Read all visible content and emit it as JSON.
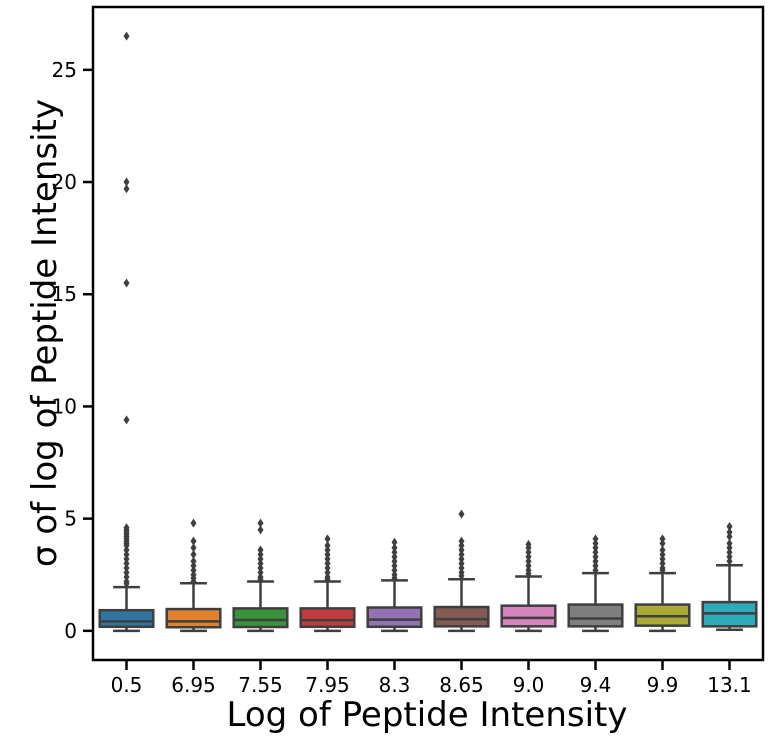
{
  "chart_data": {
    "type": "box",
    "title": "",
    "xlabel": "Log of Peptide Intensity",
    "ylabel": "σ of log of Peptide Intensity",
    "ylim": [
      -1.3,
      27.8
    ],
    "yticks": [
      0,
      5,
      10,
      15,
      20,
      25
    ],
    "grid": false,
    "categories": [
      "0.5",
      "6.95",
      "7.55",
      "7.95",
      "8.3",
      "8.65",
      "9.0",
      "9.4",
      "9.9",
      "13.1"
    ],
    "colors": [
      "#3274a1",
      "#e1812c",
      "#3a923a",
      "#c03d3e",
      "#9372b2",
      "#845b53",
      "#d684bd",
      "#7f7f7f",
      "#a9aa35",
      "#2eabb8"
    ],
    "boxes": [
      {
        "whisker_low": 0.0,
        "q1": 0.18,
        "median": 0.42,
        "q3": 0.92,
        "whisker_high": 1.95,
        "outliers": [
          26.5,
          20.0,
          19.7,
          15.5,
          9.4,
          4.6,
          4.5,
          4.4,
          4.3,
          4.2,
          4.1,
          4.0,
          3.9,
          3.8,
          3.6,
          3.4,
          3.2,
          3.0,
          2.8,
          2.6,
          2.4,
          2.2,
          2.1
        ]
      },
      {
        "whisker_low": 0.0,
        "q1": 0.16,
        "median": 0.42,
        "q3": 0.97,
        "whisker_high": 2.12,
        "outliers": [
          4.8,
          4.0,
          3.7,
          3.4,
          3.1,
          2.9,
          2.7,
          2.5,
          2.35,
          2.2
        ]
      },
      {
        "whisker_low": 0.0,
        "q1": 0.17,
        "median": 0.48,
        "q3": 1.0,
        "whisker_high": 2.2,
        "outliers": [
          4.8,
          4.5,
          3.6,
          3.4,
          3.2,
          3.0,
          2.8,
          2.6,
          2.4,
          2.3
        ]
      },
      {
        "whisker_low": 0.0,
        "q1": 0.18,
        "median": 0.47,
        "q3": 1.0,
        "whisker_high": 2.2,
        "outliers": [
          4.1,
          3.8,
          3.6,
          3.4,
          3.2,
          3.0,
          2.8,
          2.6,
          2.4,
          2.3
        ]
      },
      {
        "whisker_low": 0.0,
        "q1": 0.18,
        "median": 0.5,
        "q3": 1.04,
        "whisker_high": 2.25,
        "outliers": [
          3.95,
          3.7,
          3.5,
          3.3,
          3.1,
          2.9,
          2.7,
          2.5,
          2.35
        ]
      },
      {
        "whisker_low": 0.0,
        "q1": 0.2,
        "median": 0.52,
        "q3": 1.06,
        "whisker_high": 2.3,
        "outliers": [
          5.2,
          4.0,
          3.8,
          3.6,
          3.4,
          3.2,
          3.0,
          2.8,
          2.6,
          2.45
        ]
      },
      {
        "whisker_low": 0.0,
        "q1": 0.2,
        "median": 0.58,
        "q3": 1.12,
        "whisker_high": 2.42,
        "outliers": [
          3.85,
          3.7,
          3.5,
          3.3,
          3.1,
          2.9,
          2.7,
          2.55
        ]
      },
      {
        "whisker_low": 0.0,
        "q1": 0.2,
        "median": 0.55,
        "q3": 1.17,
        "whisker_high": 2.57,
        "outliers": [
          4.1,
          3.9,
          3.7,
          3.5,
          3.3,
          3.1,
          2.9,
          2.7
        ]
      },
      {
        "whisker_low": 0.0,
        "q1": 0.23,
        "median": 0.65,
        "q3": 1.17,
        "whisker_high": 2.57,
        "outliers": [
          4.1,
          3.9,
          3.6,
          3.4,
          3.2,
          3.0,
          2.8,
          2.7
        ]
      },
      {
        "whisker_low": 0.05,
        "q1": 0.2,
        "median": 0.78,
        "q3": 1.28,
        "whisker_high": 2.92,
        "outliers": [
          4.65,
          4.4,
          4.2,
          3.9,
          3.7,
          3.5,
          3.3,
          3.1
        ]
      }
    ]
  }
}
